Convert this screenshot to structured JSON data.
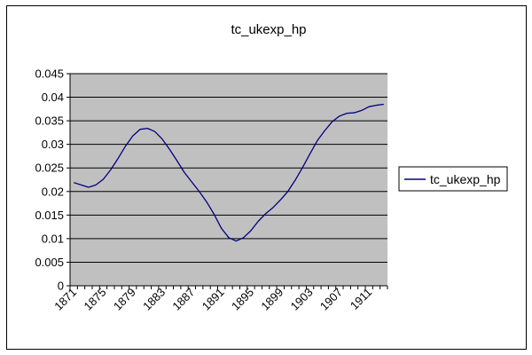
{
  "chart_data": {
    "type": "line",
    "title": "tc_ukexp_hp",
    "xlabel": "",
    "ylabel": "",
    "x": [
      1871,
      1872,
      1873,
      1874,
      1875,
      1876,
      1877,
      1878,
      1879,
      1880,
      1881,
      1882,
      1883,
      1884,
      1885,
      1886,
      1887,
      1888,
      1889,
      1890,
      1891,
      1892,
      1893,
      1894,
      1895,
      1896,
      1897,
      1898,
      1899,
      1900,
      1901,
      1902,
      1903,
      1904,
      1905,
      1906,
      1907,
      1908,
      1909,
      1910,
      1911,
      1912,
      1913
    ],
    "x_tick_labels": [
      "1871",
      "1875",
      "1879",
      "1883",
      "1887",
      "1891",
      "1895",
      "1899",
      "1903",
      "1907",
      "1911"
    ],
    "x_tick_values": [
      1871,
      1875,
      1879,
      1883,
      1887,
      1891,
      1895,
      1899,
      1903,
      1907,
      1911
    ],
    "ylim": [
      0,
      0.045
    ],
    "y_tick_labels": [
      "0",
      "0.005",
      "0.01",
      "0.015",
      "0.02",
      "0.025",
      "0.03",
      "0.035",
      "0.04",
      "0.045"
    ],
    "y_tick_values": [
      0,
      0.005,
      0.01,
      0.015,
      0.02,
      0.025,
      0.03,
      0.035,
      0.04,
      0.045
    ],
    "grid": true,
    "legend_position": "right",
    "series": [
      {
        "name": "tc_ukexp_hp",
        "color": "#000080",
        "values": [
          0.0219,
          0.0214,
          0.0209,
          0.0214,
          0.0226,
          0.0246,
          0.027,
          0.0296,
          0.0318,
          0.0332,
          0.0334,
          0.0327,
          0.0311,
          0.0289,
          0.0265,
          0.024,
          0.022,
          0.02,
          0.0178,
          0.0152,
          0.0122,
          0.0102,
          0.0095,
          0.0102,
          0.0117,
          0.0137,
          0.0153,
          0.0166,
          0.0182,
          0.02,
          0.0224,
          0.0251,
          0.028,
          0.0308,
          0.0329,
          0.0348,
          0.036,
          0.0366,
          0.0367,
          0.0372,
          0.038,
          0.0383,
          0.0385
        ]
      }
    ],
    "plot_background": "#c0c0c0",
    "grid_color": "#000000"
  }
}
